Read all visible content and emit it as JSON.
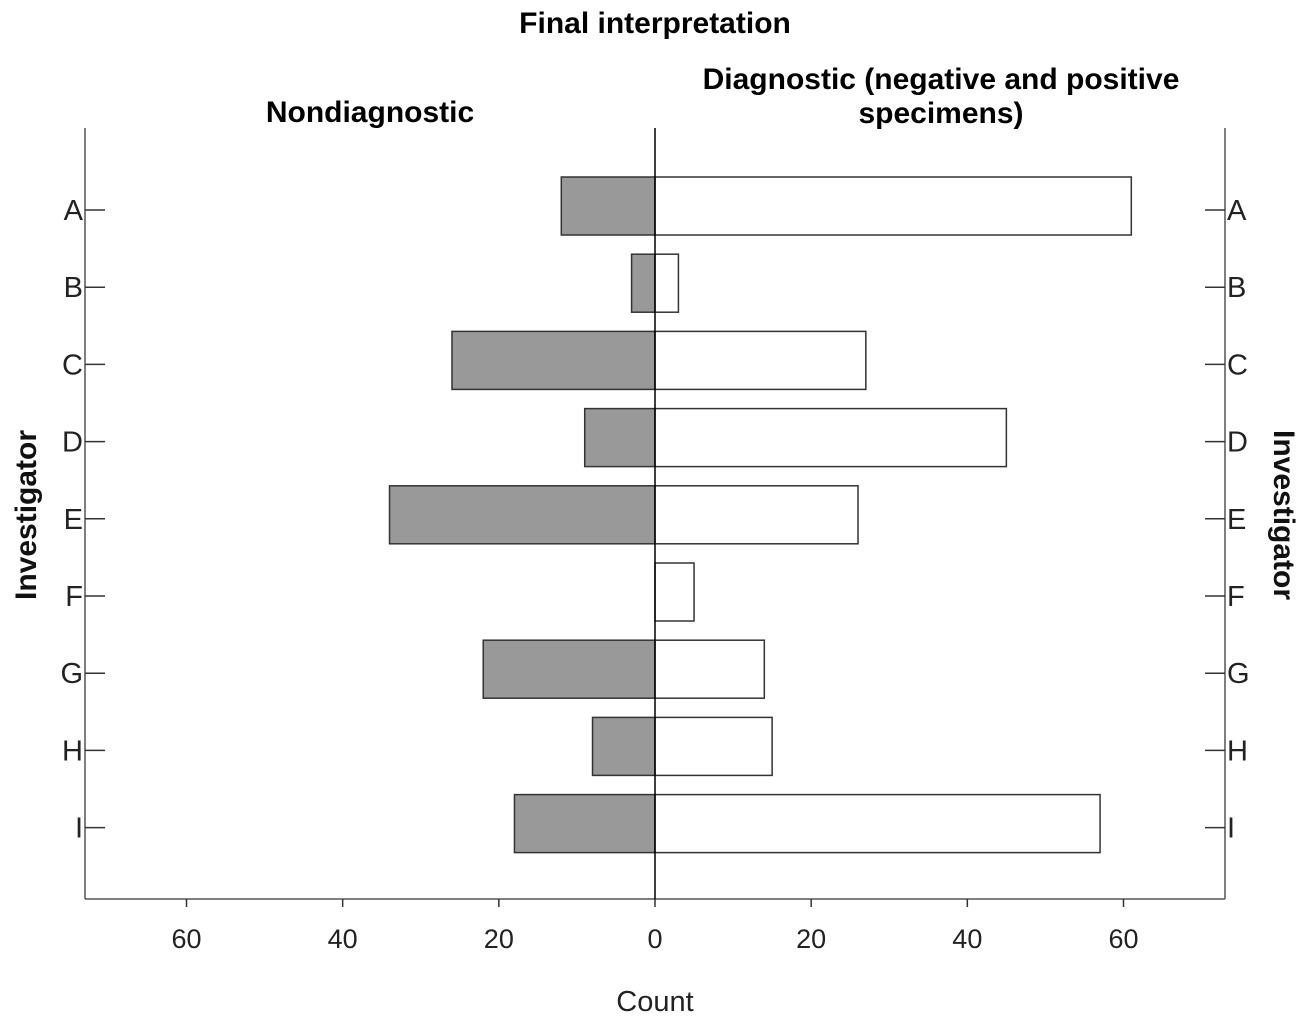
{
  "chart_data": {
    "type": "bar",
    "orientation": "horizontal",
    "layout": "population-pyramid",
    "title": "Final interpretation",
    "categories": [
      "A",
      "B",
      "C",
      "D",
      "E",
      "F",
      "G",
      "H",
      "I"
    ],
    "series": [
      {
        "name": "Nondiagnostic",
        "side": "left",
        "color": "#999999",
        "values": [
          12,
          3,
          26,
          9,
          34,
          0,
          22,
          8,
          18
        ]
      },
      {
        "name_lines": [
          "Diagnostic (negative and positive",
          "specimens)"
        ],
        "side": "right",
        "color": "#ffffff",
        "values": [
          61,
          3,
          27,
          45,
          26,
          5,
          14,
          15,
          57
        ]
      }
    ],
    "xlabel": "Count",
    "ylabel": "Investigator",
    "xlim": [
      0,
      73
    ],
    "xticks": [
      0,
      20,
      40,
      60
    ],
    "grid": false
  }
}
